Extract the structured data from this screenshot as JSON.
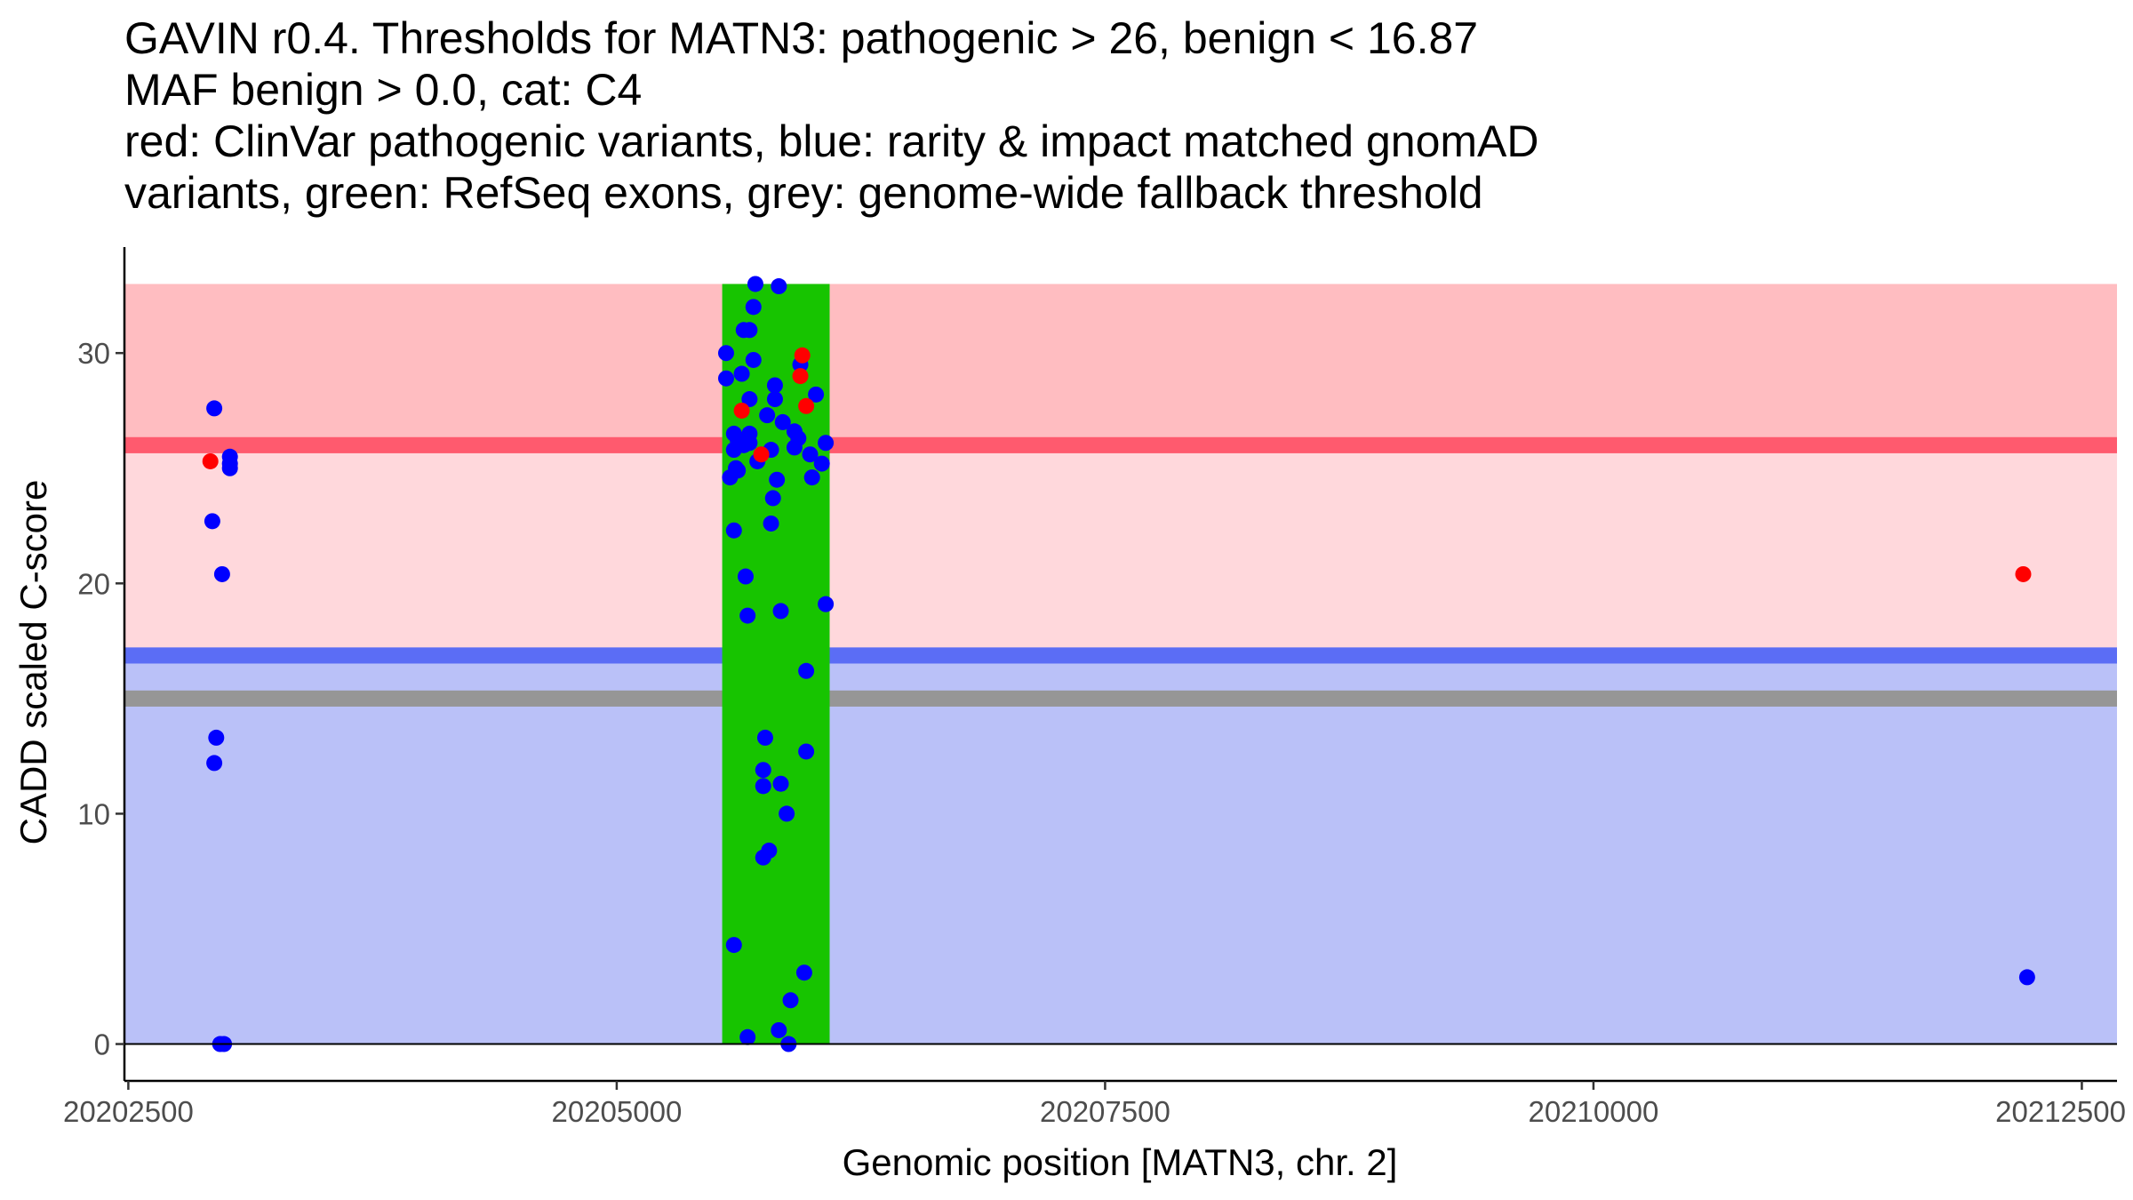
{
  "title": {
    "lines": [
      "GAVIN r0.4. Thresholds for MATN3: pathogenic > 26, benign < 16.87",
      "MAF benign > 0.0, cat: C4",
      "red: ClinVar pathogenic variants, blue: rarity & impact matched gnomAD",
      "variants, green: RefSeq exons, grey: genome-wide fallback threshold"
    ]
  },
  "chart_data": {
    "type": "scatter",
    "xlabel": "Genomic position [MATN3, chr. 2]",
    "ylabel": "CADD scaled C-score",
    "xlim": [
      20202480,
      20212680
    ],
    "ylim": [
      -1.6,
      34.6
    ],
    "x_ticks": [
      20202500,
      20205000,
      20207500,
      20210000,
      20212500
    ],
    "x_tick_labels": [
      "20202500",
      "20205000",
      "20207500",
      "20210000",
      "20212500"
    ],
    "y_ticks": [
      0,
      10,
      20,
      30
    ],
    "y_tick_labels": [
      "0",
      "10",
      "20",
      "30"
    ],
    "colors": {
      "pathogenic_zone": "#FFBDC1",
      "vus_zone": "#FFD8DC",
      "benign_zone": "#BAC1F8",
      "pathogenic_threshold": "#FF5A6E",
      "benign_threshold": "#5B6DF5",
      "fallback_threshold": "#969696",
      "exon": "#17C400",
      "clinvar": "#FF0000",
      "gnomad": "#0000FF"
    },
    "regions": {
      "pathogenic_zone": [
        26,
        33
      ],
      "vus_zone": [
        16.87,
        26
      ],
      "benign_zone": [
        0,
        16.87
      ]
    },
    "thresholds": {
      "pathogenic": 26,
      "benign": 16.87,
      "fallback": 15
    },
    "exons": [
      {
        "start": 20205540,
        "end": 20206090
      }
    ],
    "series": [
      {
        "name": "ClinVar pathogenic",
        "color": "#FF0000",
        "points": [
          [
            20202920,
            25.3
          ],
          [
            20205640,
            27.5
          ],
          [
            20205740,
            25.6
          ],
          [
            20205940,
            29.0
          ],
          [
            20205950,
            29.9
          ],
          [
            20205970,
            27.7
          ],
          [
            20212200,
            20.4
          ]
        ]
      },
      {
        "name": "gnomAD",
        "color": "#0000FF",
        "points": [
          [
            20202940,
            27.6
          ],
          [
            20202950,
            13.3
          ],
          [
            20202940,
            12.2
          ],
          [
            20202930,
            22.7
          ],
          [
            20202980,
            20.4
          ],
          [
            20203020,
            25.5
          ],
          [
            20203020,
            25.2
          ],
          [
            20203020,
            25.0
          ],
          [
            20202990,
            0.0
          ],
          [
            20202970,
            0.0
          ],
          [
            20205560,
            30.0
          ],
          [
            20205560,
            28.9
          ],
          [
            20205580,
            24.6
          ],
          [
            20205600,
            22.3
          ],
          [
            20205600,
            26.5
          ],
          [
            20205600,
            25.8
          ],
          [
            20205600,
            4.3
          ],
          [
            20205610,
            25.0
          ],
          [
            20205620,
            26.2
          ],
          [
            20205620,
            24.9
          ],
          [
            20205640,
            29.1
          ],
          [
            20205650,
            31.0
          ],
          [
            20205650,
            26.0
          ],
          [
            20205660,
            20.3
          ],
          [
            20205670,
            18.6
          ],
          [
            20205670,
            0.3
          ],
          [
            20205680,
            26.5
          ],
          [
            20205680,
            28.0
          ],
          [
            20205680,
            31.0
          ],
          [
            20205680,
            26.1
          ],
          [
            20205700,
            32.0
          ],
          [
            20205700,
            29.7
          ],
          [
            20205710,
            33.0
          ],
          [
            20205720,
            25.3
          ],
          [
            20205760,
            13.3
          ],
          [
            20205750,
            11.9
          ],
          [
            20205750,
            11.2
          ],
          [
            20205750,
            8.1
          ],
          [
            20205770,
            27.3
          ],
          [
            20205780,
            8.4
          ],
          [
            20205790,
            22.6
          ],
          [
            20205790,
            25.8
          ],
          [
            20205800,
            23.7
          ],
          [
            20205810,
            28.0
          ],
          [
            20205810,
            28.6
          ],
          [
            20205820,
            24.5
          ],
          [
            20205830,
            32.9
          ],
          [
            20205830,
            0.6
          ],
          [
            20205840,
            18.8
          ],
          [
            20205840,
            11.3
          ],
          [
            20205850,
            27.0
          ],
          [
            20205870,
            10.0
          ],
          [
            20205890,
            1.9
          ],
          [
            20205880,
            0.0
          ],
          [
            20205910,
            26.6
          ],
          [
            20205910,
            25.9
          ],
          [
            20205930,
            26.3
          ],
          [
            20205940,
            29.5
          ],
          [
            20205960,
            3.1
          ],
          [
            20205970,
            12.7
          ],
          [
            20205970,
            16.2
          ],
          [
            20205990,
            25.6
          ],
          [
            20206000,
            24.6
          ],
          [
            20206020,
            28.2
          ],
          [
            20206050,
            25.2
          ],
          [
            20206070,
            26.1
          ],
          [
            20206070,
            19.1
          ],
          [
            20212220,
            2.9
          ]
        ]
      }
    ]
  }
}
